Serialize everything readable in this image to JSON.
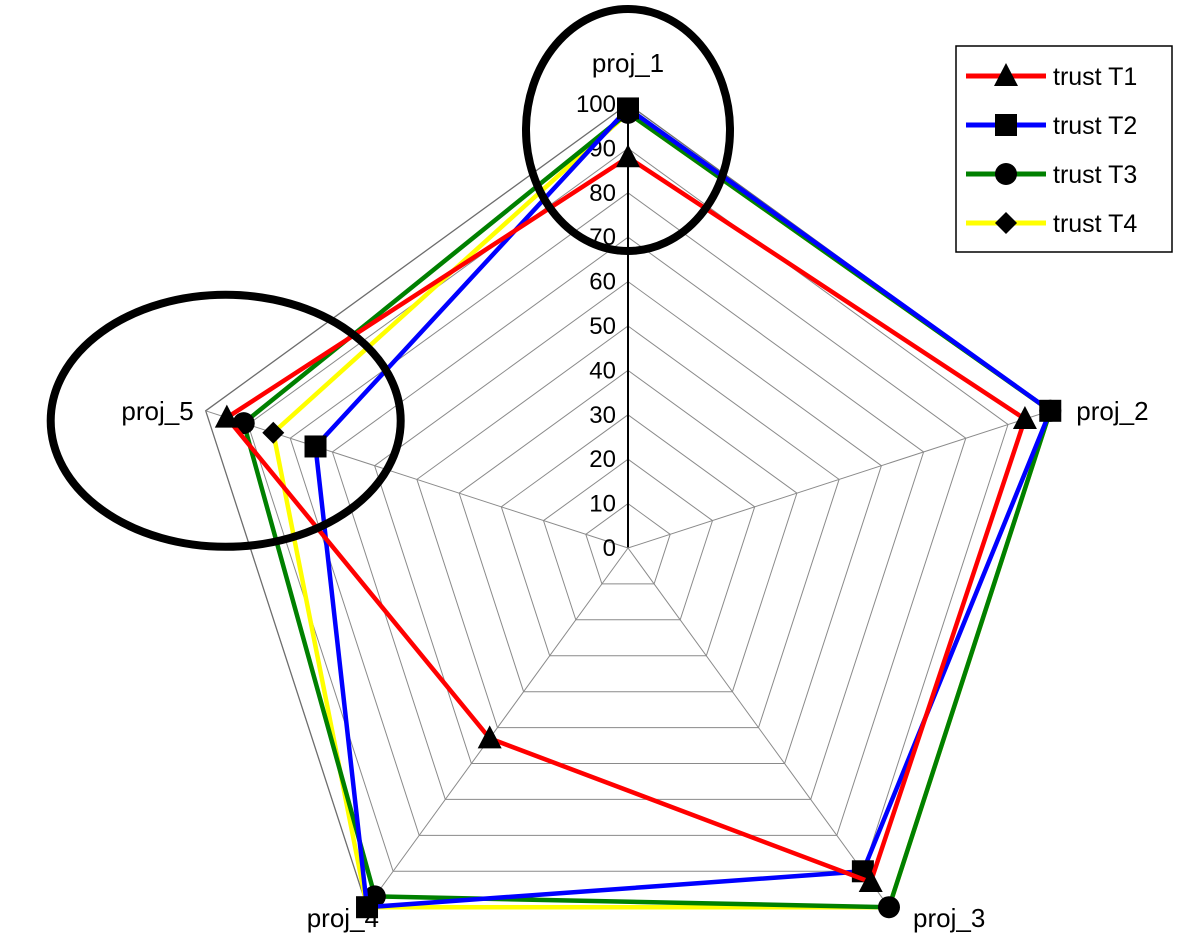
{
  "chart_data": {
    "type": "radar",
    "title": "",
    "categories": [
      "proj_1",
      "proj_2",
      "proj_3",
      "proj_4",
      "proj_5"
    ],
    "rlim": [
      0,
      100
    ],
    "ticks": [
      "0",
      "10",
      "20",
      "30",
      "40",
      "50",
      "60",
      "70",
      "80",
      "90",
      "100"
    ],
    "grid": true,
    "legend_position": "top-right",
    "series": [
      {
        "name": "trust T1",
        "color": "#ff0000",
        "marker": "triangle",
        "values": [
          88,
          94,
          93,
          53,
          95
        ]
      },
      {
        "name": "trust T2",
        "color": "#0000ff",
        "marker": "square",
        "values": [
          99,
          100,
          90,
          100,
          74
        ]
      },
      {
        "name": "trust T3",
        "color": "#008000",
        "marker": "circle",
        "values": [
          98,
          100,
          100,
          97,
          91
        ]
      },
      {
        "name": "trust T4",
        "color": "#ffff00",
        "marker": "diamond",
        "values": [
          98,
          100,
          100,
          100,
          84
        ]
      }
    ],
    "annotations": [
      {
        "shape": "ellipse",
        "target": "proj_1"
      },
      {
        "shape": "ellipse",
        "target": "proj_5"
      }
    ]
  }
}
